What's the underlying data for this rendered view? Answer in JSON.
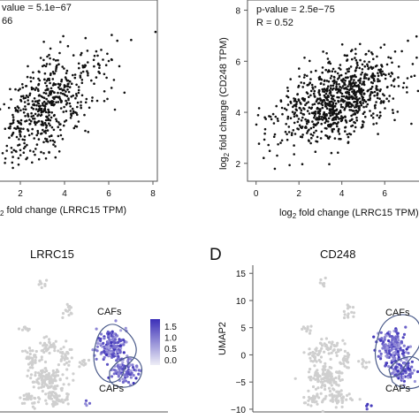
{
  "colors": {
    "point": "#111111",
    "frame": "#555555",
    "umap_cell": "#cfcfcf",
    "umap_high": "#3b2fb8",
    "umap_low": "#e8e6f5",
    "outline": "#4a5a8a"
  },
  "chart_data": [
    {
      "type": "scatter",
      "panel": "top-left",
      "stat_text": [
        "value = 5.1e−67",
        "66"
      ],
      "xlabel_sub": "2",
      "xlabel_rest": " fold change (LRRC15 TPM)",
      "xticks": [
        "2",
        "4",
        "6",
        "8"
      ],
      "xlim": [
        1,
        8.2
      ],
      "ylim": [
        1.0,
        6.5
      ],
      "points_note_count": 520,
      "trend": {
        "slope": 0.45,
        "intercept": 1.9,
        "noise": 0.65
      }
    },
    {
      "type": "scatter",
      "panel": "top-right",
      "stat_text": [
        "p-value = 2.5e−75",
        "R = 0.52"
      ],
      "xlabel_pre": "log",
      "xlabel_sub": "2",
      "xlabel_rest": " fold change (LRRC15 TPM)",
      "ylabel_pre": "log",
      "ylabel_sub": "2",
      "ylabel_rest": " fold change (CD248 TPM)",
      "xticks": [
        "0",
        "2",
        "4",
        "6"
      ],
      "yticks": [
        "2",
        "4",
        "6",
        "8"
      ],
      "xlim": [
        -0.4,
        7.6
      ],
      "ylim": [
        1.3,
        8.4
      ],
      "trend": {
        "slope": 0.32,
        "intercept": 3.3,
        "noise": 0.75
      }
    },
    {
      "type": "scatter",
      "panel": "bottom-left",
      "title": "LRRC15",
      "legend_ticks": [
        "1.5",
        "1.0",
        "0.5",
        "0.0"
      ],
      "annotations": [
        "CAFs",
        "CAPs"
      ]
    },
    {
      "type": "scatter",
      "panel": "bottom-right",
      "panel_letter": "D",
      "title": "CD248",
      "ylabel": "UMAP2",
      "yticks": [
        "15",
        "10",
        "5",
        "0",
        "−5",
        "−10"
      ],
      "ylim": [
        -10.5,
        16.5
      ],
      "annotations": [
        "CAFs",
        "CAPs"
      ]
    }
  ]
}
